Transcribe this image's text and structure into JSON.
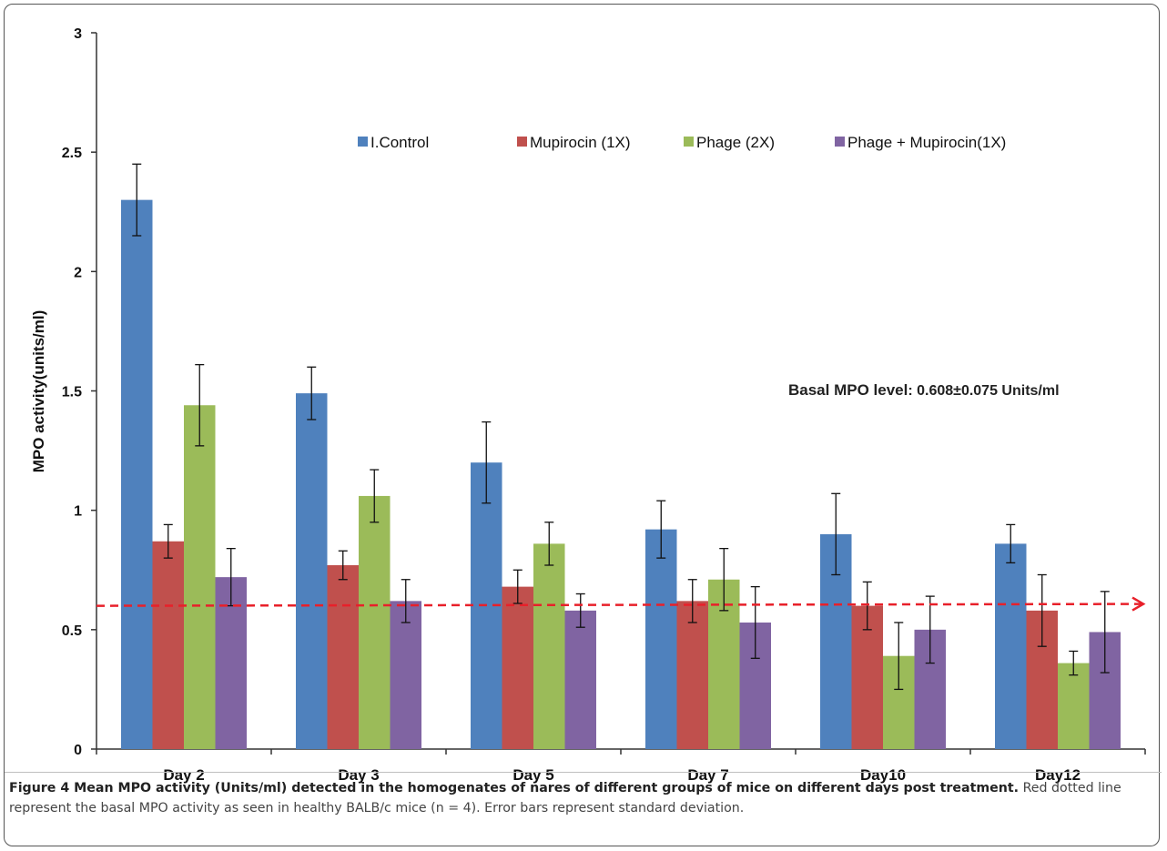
{
  "chart_data": {
    "type": "bar",
    "title": "",
    "xlabel": "",
    "ylabel": "MPO activity(units/ml)",
    "ylim": [
      0,
      3
    ],
    "yticks": [
      "0",
      "0.5",
      "1",
      "1.5",
      "2",
      "2.5",
      "3"
    ],
    "categories": [
      "Day 2",
      "Day 3",
      "Day 5",
      "Day 7",
      "Day10",
      "Day12"
    ],
    "series": [
      {
        "name": "I.Control",
        "color": "#4f81bd",
        "values": [
          2.3,
          1.49,
          1.2,
          0.92,
          0.9,
          0.86
        ],
        "errors": [
          0.15,
          0.11,
          0.17,
          0.12,
          0.17,
          0.08
        ]
      },
      {
        "name": "Mupirocin (1X)",
        "color": "#c0504d",
        "values": [
          0.87,
          0.77,
          0.68,
          0.62,
          0.6,
          0.58
        ],
        "errors": [
          0.07,
          0.06,
          0.07,
          0.09,
          0.1,
          0.15
        ]
      },
      {
        "name": "Phage (2X)",
        "color": "#9bbb59",
        "values": [
          1.44,
          1.06,
          0.86,
          0.71,
          0.39,
          0.36
        ],
        "errors": [
          0.17,
          0.11,
          0.09,
          0.13,
          0.14,
          0.05
        ]
      },
      {
        "name": "Phage + Mupirocin(1X)",
        "color": "#8064a2",
        "values": [
          0.72,
          0.62,
          0.58,
          0.53,
          0.5,
          0.49
        ],
        "errors": [
          0.12,
          0.09,
          0.07,
          0.15,
          0.14,
          0.17
        ]
      }
    ],
    "reference_line": {
      "value": 0.6,
      "color": "#e8202a",
      "style": "dashed-arrow"
    },
    "annotation": {
      "label": "Basal MPO level",
      "value": ": 0.608±0.075   Units/ml"
    },
    "legend_placement": "top",
    "grid": false
  },
  "caption": {
    "title": "Figure 4 Mean MPO activity (Units/ml) detected in the homogenates of nares of different groups of mice on different days post treatment.",
    "body": "Red dotted line represent the basal MPO activity as seen in healthy BALB/c mice (n = 4). Error bars represent standard deviation."
  }
}
